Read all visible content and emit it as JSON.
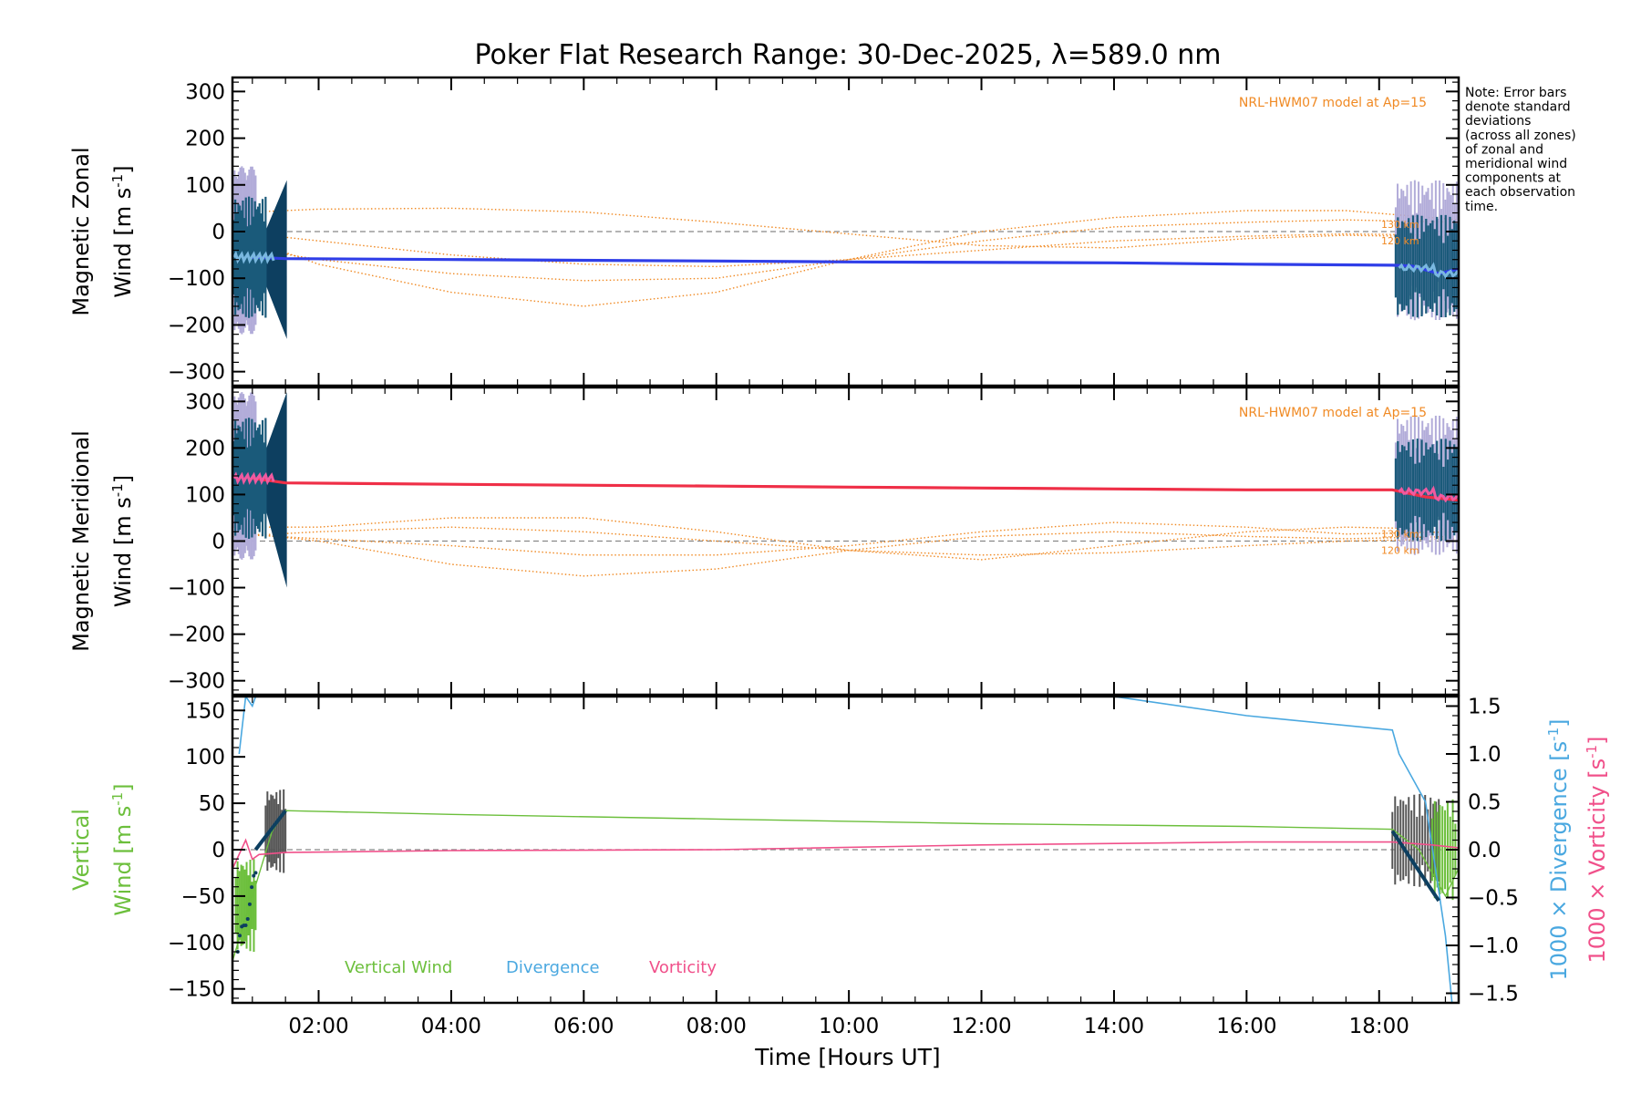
{
  "title": "Poker Flat Research Range: 30-Dec-2025, λ=589.0 nm",
  "note_lines": [
    "Note: Error bars",
    "denote standard",
    "deviations",
    "(across all zones)",
    "of zonal and",
    "meridional wind",
    "components at",
    "each observation",
    "time."
  ],
  "colors": {
    "zonal": "#2f3ee8",
    "meridional": "#ef2f47",
    "model": "#f08a24",
    "spread": "#0d3f60",
    "scatter": "#b2acd9",
    "light_blue": "#7ab8e0",
    "pink": "#f05aa0",
    "vertical": "#6cbf3c",
    "divergence": "#4aa8e0",
    "vorticity": "#f0508a",
    "gray_bars": "#666666",
    "zero_line": "#888888"
  },
  "chart_data": [
    {
      "type": "line",
      "ylabel": "Magnetic Zonal Wind [m s-1]",
      "ylabel_lines": [
        "Magnetic Zonal",
        "Wind [m s",
        "-1",
        "]"
      ],
      "ylim": [
        -330,
        330
      ],
      "yticks": [
        300,
        200,
        100,
        0,
        -100,
        -200,
        -300
      ],
      "ytick_labels": [
        "300",
        "200",
        "100",
        "0",
        "−100",
        "−200",
        "−300"
      ],
      "model_label": "NRL-HWM07 model at Ap=15",
      "altitude_labels": [
        "130 km",
        "120 km"
      ],
      "series": [
        {
          "x": [
            1.0,
            1.5,
            4.0,
            8.0,
            10.0,
            14.0,
            16.0,
            18.2,
            18.5,
            18.9,
            19.2
          ],
          "values": [
            -55,
            -58,
            -60,
            -63,
            -65,
            -67,
            -70,
            -72,
            -74,
            -90,
            -80
          ]
        }
      ],
      "model_series": [
        {
          "x": [
            0.7,
            2,
            4,
            6,
            8,
            10,
            12,
            14,
            16,
            17.5,
            19.2
          ],
          "values": [
            40,
            48,
            50,
            42,
            20,
            -5,
            -30,
            -35,
            -15,
            -8,
            -12
          ]
        },
        {
          "x": [
            0.7,
            2,
            4,
            6,
            8,
            10,
            12,
            14,
            16,
            17.5,
            19.2
          ],
          "values": [
            -5,
            -70,
            -130,
            -160,
            -130,
            -60,
            0,
            30,
            45,
            45,
            25
          ]
        },
        {
          "x": [
            0.7,
            2,
            4,
            6,
            8,
            10,
            12,
            14,
            16,
            17.5,
            19.2
          ],
          "values": [
            -30,
            -60,
            -90,
            -105,
            -100,
            -60,
            -20,
            10,
            20,
            25,
            20
          ]
        },
        {
          "x": [
            0.7,
            2,
            4,
            6,
            8,
            10,
            12,
            14,
            16,
            17.5,
            19.2
          ],
          "values": [
            0,
            -20,
            -50,
            -70,
            -75,
            -60,
            -40,
            -20,
            -10,
            -5,
            -8
          ]
        }
      ]
    },
    {
      "type": "line",
      "ylabel": "Magnetic Meridional Wind [m s-1]",
      "ylabel_lines": [
        "Magnetic Meridional",
        "Wind [m s",
        "-1",
        "]"
      ],
      "ylim": [
        -330,
        330
      ],
      "yticks": [
        300,
        200,
        100,
        0,
        -100,
        -200,
        -300
      ],
      "ytick_labels": [
        "300",
        "200",
        "100",
        "0",
        "−100",
        "−200",
        "−300"
      ],
      "model_label": "NRL-HWM07 model at Ap=15",
      "altitude_labels": [
        "130 km",
        "120 km"
      ],
      "series": [
        {
          "x": [
            1.0,
            1.5,
            4.0,
            8.0,
            10.0,
            12.0,
            14.0,
            16.0,
            18.2,
            18.7,
            19.2
          ],
          "values": [
            135,
            125,
            122,
            118,
            116,
            114,
            112,
            110,
            110,
            95,
            88
          ]
        }
      ],
      "model_series": [
        {
          "x": [
            0.7,
            2,
            4,
            6,
            8,
            10,
            12,
            14,
            16,
            17.5,
            19.2
          ],
          "values": [
            20,
            0,
            -50,
            -75,
            -60,
            -20,
            10,
            20,
            10,
            5,
            10
          ]
        },
        {
          "x": [
            0.7,
            2,
            4,
            6,
            8,
            10,
            12,
            14,
            16,
            17.5,
            19.2
          ],
          "values": [
            30,
            30,
            50,
            50,
            20,
            -20,
            -40,
            -10,
            20,
            30,
            25
          ]
        },
        {
          "x": [
            0.7,
            2,
            4,
            6,
            8,
            10,
            12,
            14,
            16,
            17.5,
            19.2
          ],
          "values": [
            10,
            20,
            30,
            20,
            0,
            -20,
            -30,
            -25,
            -10,
            0,
            5
          ]
        },
        {
          "x": [
            0.7,
            2,
            4,
            6,
            8,
            10,
            12,
            14,
            16,
            17.5,
            19.2
          ],
          "values": [
            15,
            5,
            -10,
            -30,
            -30,
            -10,
            20,
            40,
            30,
            15,
            20
          ]
        }
      ]
    },
    {
      "type": "line",
      "ylabel": "Vertical Wind [m s-1]",
      "ylabel_lines": [
        "Vertical",
        "Wind [m s",
        "-1",
        "]"
      ],
      "ylim": [
        -165,
        165
      ],
      "yticks": [
        150,
        100,
        50,
        0,
        -50,
        -100,
        -150
      ],
      "ytick_labels": [
        "150",
        "100",
        "50",
        "0",
        "−50",
        "−100",
        "−150"
      ],
      "y2label": "1000 × Divergence [s-1]",
      "y2label_lines": [
        "1000 × Divergence [s",
        "-1",
        "]"
      ],
      "y3label": "1000 × Vorticity [s-1]",
      "y3label_lines": [
        "1000 × Vorticity [s",
        "-1",
        "]"
      ],
      "y2lim": [
        -1.6,
        1.6
      ],
      "y2ticks": [
        1.5,
        1.0,
        0.5,
        0.0,
        -0.5,
        -1.0,
        -1.5
      ],
      "y2tick_labels": [
        "1.5",
        "1.0",
        "0.5",
        "0.0",
        "−0.5",
        "−1.0",
        "−1.5"
      ],
      "legend": [
        "Vertical Wind",
        "Divergence",
        "Vorticity"
      ],
      "series": [
        {
          "name": "Vertical Wind",
          "x": [
            0.7,
            1.0,
            1.3,
            1.5,
            4.0,
            8.0,
            12.0,
            16.0,
            18.2,
            18.6,
            19.0,
            19.2
          ],
          "values": [
            -120,
            -50,
            20,
            42,
            38,
            33,
            28,
            25,
            22,
            0,
            -50,
            -20
          ]
        },
        {
          "name": "Divergence",
          "x": [
            0.8,
            0.9,
            1.0,
            1.05,
            14.0,
            16.0,
            18.2,
            18.3,
            18.7,
            19.0,
            19.1
          ],
          "values": [
            1.0,
            1.6,
            1.5,
            1.6,
            1.6,
            1.4,
            1.25,
            1.0,
            0.5,
            -0.9,
            -1.6
          ]
        },
        {
          "name": "Vorticity",
          "x": [
            0.7,
            0.9,
            1.0,
            1.1,
            1.5,
            4.0,
            8.0,
            12.0,
            16.0,
            18.2,
            18.8,
            19.2
          ],
          "values": [
            -0.2,
            0.1,
            -0.1,
            -0.05,
            -0.03,
            -0.01,
            0.0,
            0.05,
            0.08,
            0.08,
            0.05,
            0.02
          ]
        }
      ]
    }
  ],
  "xaxis": {
    "xlim": [
      0.7,
      19.2
    ],
    "ticks": [
      2,
      4,
      6,
      8,
      10,
      12,
      14,
      16,
      18
    ],
    "tick_labels": [
      "02:00",
      "04:00",
      "06:00",
      "08:00",
      "10:00",
      "12:00",
      "14:00",
      "16:00",
      "18:00"
    ],
    "xlabel": "Time [Hours UT]"
  }
}
